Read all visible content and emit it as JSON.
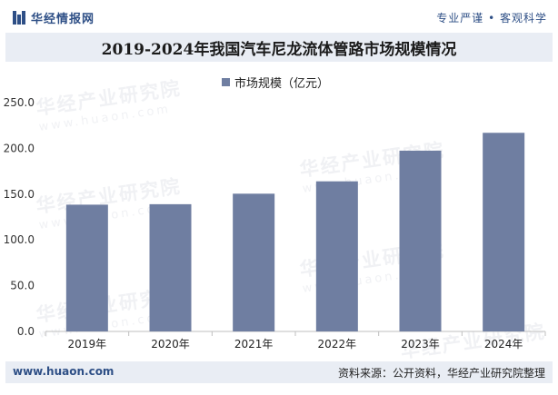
{
  "header": {
    "brand": "华经情报网",
    "tagline": "专业严谨 • 客观科学",
    "title": "2019-2024年我国汽车尼龙流体管路市场规模情况"
  },
  "legend": {
    "label": "市场规模（亿元）"
  },
  "watermark": {
    "text": "华经产业研究院",
    "url": "www.huaon.com"
  },
  "footer": {
    "url": "www.huaon.com",
    "source": "资料来源：公开资料，华经产业研究院整理"
  },
  "colors": {
    "bar": "#6f7ea1",
    "brand": "#2e4f86",
    "band": "#e9edf4"
  },
  "chart_data": {
    "type": "bar",
    "title": "2019-2024年我国汽车尼龙流体管路市场规模情况",
    "categories": [
      "2019年",
      "2020年",
      "2021年",
      "2022年",
      "2023年",
      "2024年"
    ],
    "series": [
      {
        "name": "市场规模（亿元）",
        "values": [
          138.5,
          139.0,
          150.5,
          164.0,
          197.5,
          217.0
        ]
      }
    ],
    "ylim": [
      0,
      250
    ],
    "yticks": [
      "0.0",
      "50.0",
      "100.0",
      "150.0",
      "200.0",
      "250.0"
    ],
    "xlabel": "",
    "ylabel": "",
    "grid": false,
    "legend_position": "top-center"
  }
}
